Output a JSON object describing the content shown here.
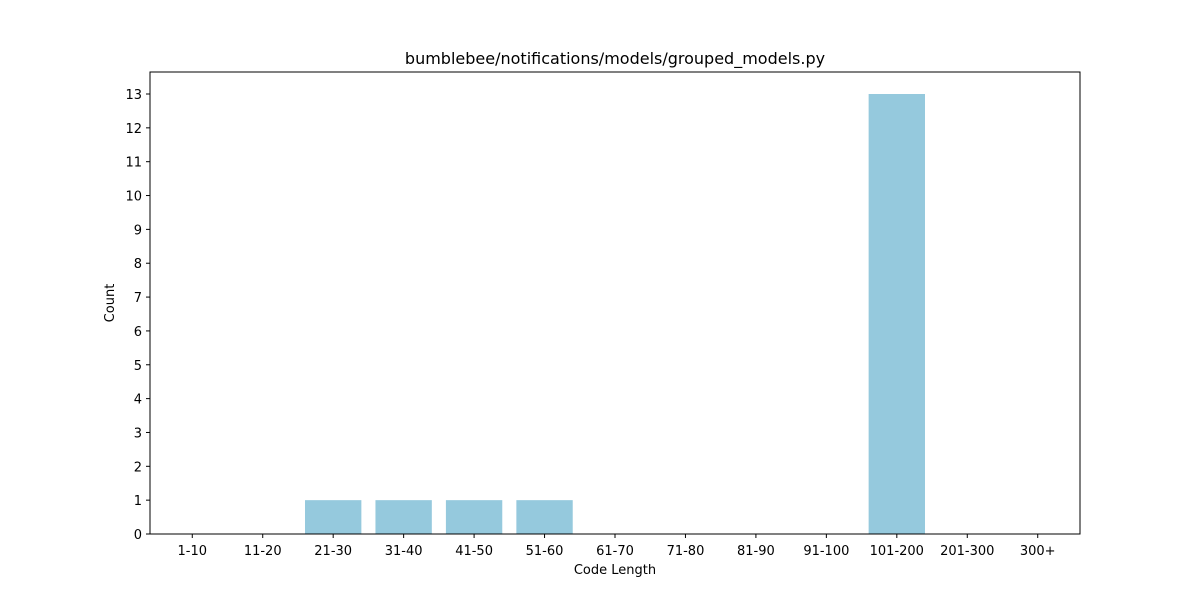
{
  "chart_data": {
    "type": "bar",
    "title": "bumblebee/notifications/models/grouped_models.py",
    "xlabel": "Code Length",
    "ylabel": "Count",
    "categories": [
      "1-10",
      "11-20",
      "21-30",
      "31-40",
      "41-50",
      "51-60",
      "61-70",
      "71-80",
      "81-90",
      "91-100",
      "101-200",
      "201-300",
      "300+"
    ],
    "values": [
      0,
      0,
      1,
      1,
      1,
      1,
      0,
      0,
      0,
      0,
      13,
      0,
      0
    ],
    "ylim": [
      0,
      13.65
    ],
    "yticks": [
      0,
      1,
      2,
      3,
      4,
      5,
      6,
      7,
      8,
      9,
      10,
      11,
      12,
      13
    ],
    "grid": false,
    "bar_color": "#95c9dd"
  }
}
